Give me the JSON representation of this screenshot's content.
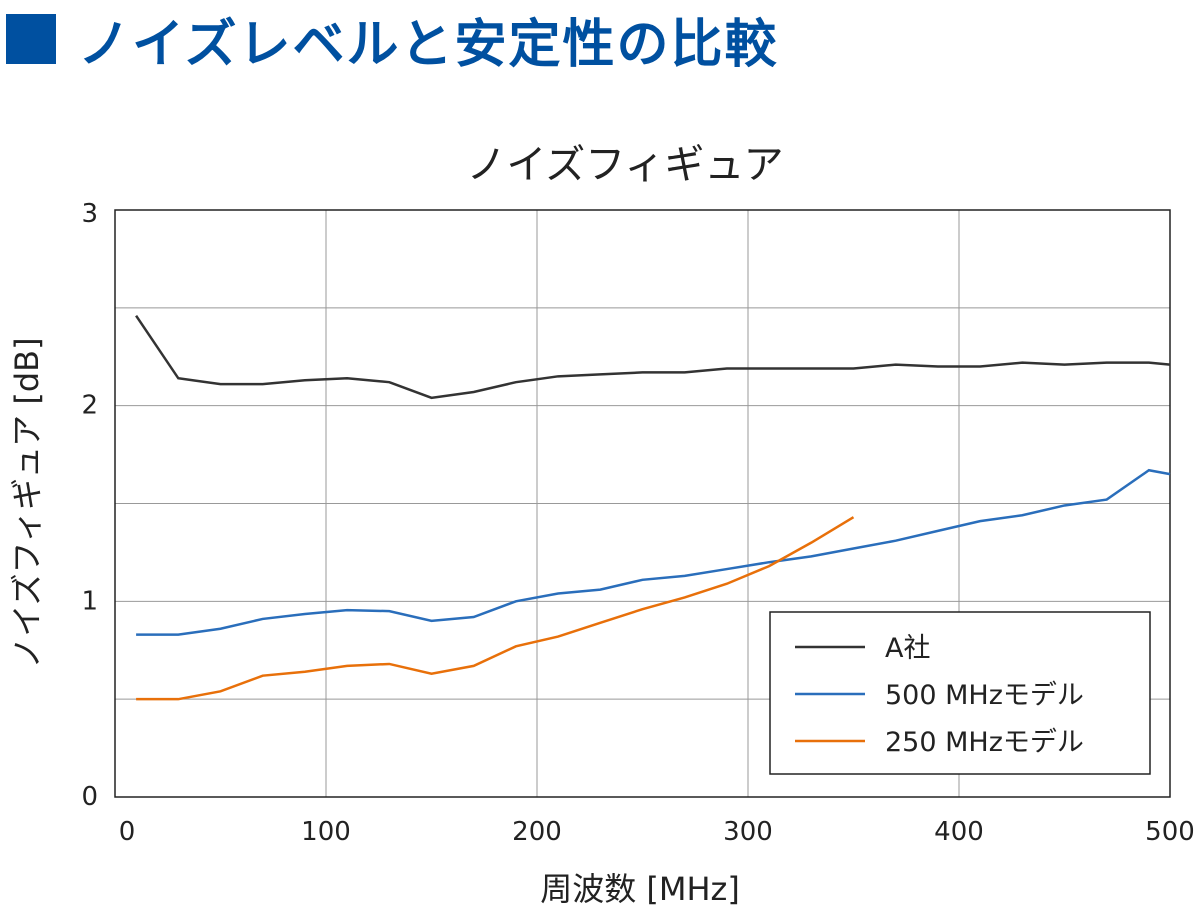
{
  "page_title": "ノイズレベルと安定性の比較",
  "colors": {
    "heading": "#0050a0",
    "a_company": "#333333",
    "model_500": "#2a6ebb",
    "model_250": "#e8700a"
  },
  "chart_data": {
    "type": "line",
    "title": "ノイズフィギュア",
    "xlabel": "周波数 [MHz]",
    "ylabel": "ノイズフィギュア [dB]",
    "xlim": [
      0,
      500
    ],
    "ylim": [
      0,
      3
    ],
    "xticks": [
      "0",
      "100",
      "200",
      "300",
      "400",
      "500"
    ],
    "yticks": [
      "0",
      "1",
      "2",
      "3"
    ],
    "grid": true,
    "legend_position": "bottom-right",
    "series": [
      {
        "name": "A社",
        "color": "#333333",
        "x": [
          10,
          30,
          50,
          70,
          90,
          110,
          130,
          150,
          170,
          190,
          210,
          230,
          250,
          270,
          290,
          310,
          330,
          350,
          370,
          390,
          410,
          430,
          450,
          470,
          490,
          500
        ],
        "y": [
          2.46,
          2.14,
          2.11,
          2.11,
          2.13,
          2.14,
          2.12,
          2.04,
          2.07,
          2.12,
          2.15,
          2.16,
          2.17,
          2.17,
          2.19,
          2.19,
          2.19,
          2.19,
          2.21,
          2.2,
          2.2,
          2.22,
          2.21,
          2.22,
          2.22,
          2.21
        ]
      },
      {
        "name": "500 MHzモデル",
        "color": "#2a6ebb",
        "x": [
          10,
          30,
          50,
          70,
          90,
          110,
          130,
          150,
          170,
          190,
          210,
          230,
          250,
          270,
          290,
          310,
          330,
          350,
          370,
          390,
          410,
          430,
          450,
          470,
          490,
          500
        ],
        "y": [
          0.83,
          0.83,
          0.86,
          0.91,
          0.935,
          0.955,
          0.95,
          0.9,
          0.92,
          1.0,
          1.04,
          1.06,
          1.11,
          1.13,
          1.165,
          1.2,
          1.23,
          1.27,
          1.31,
          1.36,
          1.41,
          1.44,
          1.49,
          1.52,
          1.67,
          1.65
        ]
      },
      {
        "name": "250 MHzモデル",
        "color": "#e8700a",
        "x": [
          10,
          30,
          50,
          70,
          90,
          110,
          130,
          150,
          170,
          190,
          210,
          230,
          250,
          270,
          290,
          310,
          330,
          350
        ],
        "y": [
          0.5,
          0.5,
          0.54,
          0.62,
          0.64,
          0.67,
          0.68,
          0.63,
          0.67,
          0.77,
          0.82,
          0.89,
          0.96,
          1.02,
          1.09,
          1.18,
          1.3,
          1.43
        ]
      }
    ]
  }
}
